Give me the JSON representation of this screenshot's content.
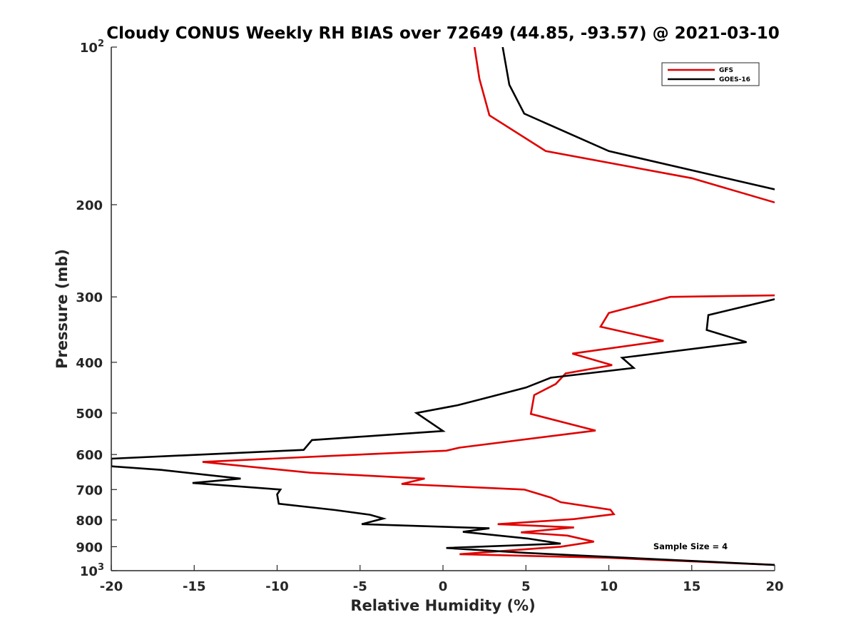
{
  "chart_data": {
    "type": "line",
    "title": "Cloudy CONUS Weekly RH BIAS over 72649 (44.85, -93.57) @ 2021-03-10",
    "xlabel": "Relative Humidity (%)",
    "ylabel": "Pressure (mb)",
    "xlim": [
      -20,
      20
    ],
    "ylim": [
      100,
      1000
    ],
    "yscale": "log",
    "y_reversed": true,
    "xticks": [
      -20,
      -15,
      -10,
      -5,
      0,
      5,
      10,
      15,
      20
    ],
    "xtick_labels": [
      "-20",
      "-15",
      "-10",
      "-5",
      "0",
      "5",
      "10",
      "15",
      "20"
    ],
    "yticks": [
      {
        "value": 100,
        "base": "10",
        "exp": "2"
      },
      {
        "value": 200,
        "label": "200"
      },
      {
        "value": 300,
        "label": "300"
      },
      {
        "value": 400,
        "label": "400"
      },
      {
        "value": 500,
        "label": "500"
      },
      {
        "value": 600,
        "label": "600"
      },
      {
        "value": 700,
        "label": "700"
      },
      {
        "value": 800,
        "label": "800"
      },
      {
        "value": 900,
        "label": "900"
      },
      {
        "value": 1000,
        "base": "10",
        "exp": "3"
      }
    ],
    "grid": false,
    "legend_position": "top-right",
    "annotation": "Sample Size = 4",
    "series": [
      {
        "name": "GFS",
        "color": "#e00000",
        "points": [
          [
            1.9,
            100
          ],
          [
            2.2,
            115
          ],
          [
            2.8,
            135
          ],
          [
            6.2,
            158
          ],
          [
            15,
            178
          ],
          [
            20,
            198
          ],
          [
            null,
            null
          ],
          [
            20,
            298
          ],
          [
            13.7,
            300
          ],
          [
            10,
            322
          ],
          [
            9.5,
            342
          ],
          [
            13.3,
            364
          ],
          [
            7.8,
            385
          ],
          [
            10.2,
            405
          ],
          [
            7.4,
            420
          ],
          [
            6.8,
            440
          ],
          [
            5.5,
            462
          ],
          [
            5.4,
            482
          ],
          [
            5.3,
            502
          ],
          [
            9.2,
            540
          ],
          [
            1.0,
            582
          ],
          [
            0.2,
            590
          ],
          [
            -6.5,
            603
          ],
          [
            -14.5,
            620
          ],
          [
            -8,
            650
          ],
          [
            -1.1,
            667
          ],
          [
            -2.5,
            683
          ],
          [
            4.9,
            700
          ],
          [
            6.5,
            725
          ],
          [
            7.1,
            740
          ],
          [
            10.1,
            765
          ],
          [
            10.3,
            780
          ],
          [
            7.9,
            797
          ],
          [
            3.3,
            815
          ],
          [
            7.9,
            827
          ],
          [
            4.7,
            845
          ],
          [
            7.5,
            857
          ],
          [
            9.1,
            880
          ],
          [
            7.1,
            900
          ],
          [
            1.0,
            930
          ],
          [
            10,
            945
          ],
          [
            20,
            975
          ]
        ]
      },
      {
        "name": "GOES-16",
        "color": "#000000",
        "points": [
          [
            3.6,
            100
          ],
          [
            4.0,
            118
          ],
          [
            4.9,
            134
          ],
          [
            10,
            158
          ],
          [
            20,
            187
          ],
          [
            null,
            null
          ],
          [
            20,
            303
          ],
          [
            16,
            325
          ],
          [
            15.9,
            347
          ],
          [
            18.3,
            366
          ],
          [
            10.8,
            392
          ],
          [
            11.5,
            410
          ],
          [
            6.5,
            428
          ],
          [
            5.0,
            447
          ],
          [
            2.8,
            466
          ],
          [
            0.9,
            483
          ],
          [
            -1.6,
            500
          ],
          [
            0,
            541
          ],
          [
            -7.9,
            563
          ],
          [
            -8.4,
            588
          ],
          [
            -20,
            611
          ],
          [
            -20,
            632
          ],
          [
            -17,
            642
          ],
          [
            -12.2,
            667
          ],
          [
            -15.1,
            680
          ],
          [
            -9.8,
            700
          ],
          [
            -10,
            715
          ],
          [
            -9.9,
            745
          ],
          [
            -6.5,
            766
          ],
          [
            -4.4,
            782
          ],
          [
            -3.6,
            795
          ],
          [
            -4.9,
            815
          ],
          [
            2.8,
            830
          ],
          [
            1.2,
            843
          ],
          [
            5.1,
            868
          ],
          [
            7.1,
            888
          ],
          [
            0.2,
            905
          ],
          [
            5.0,
            925
          ],
          [
            20,
            975
          ]
        ]
      }
    ]
  }
}
